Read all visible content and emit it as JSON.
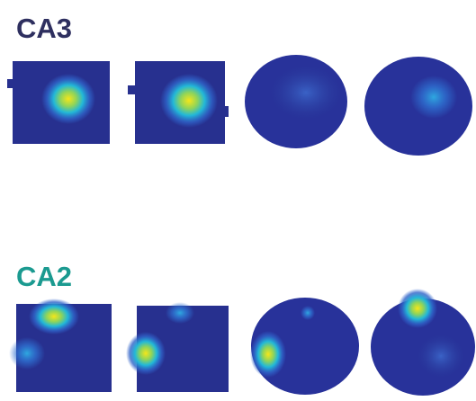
{
  "panels": [
    {
      "label": "CA3"
    },
    {
      "label": "CA2"
    }
  ]
}
